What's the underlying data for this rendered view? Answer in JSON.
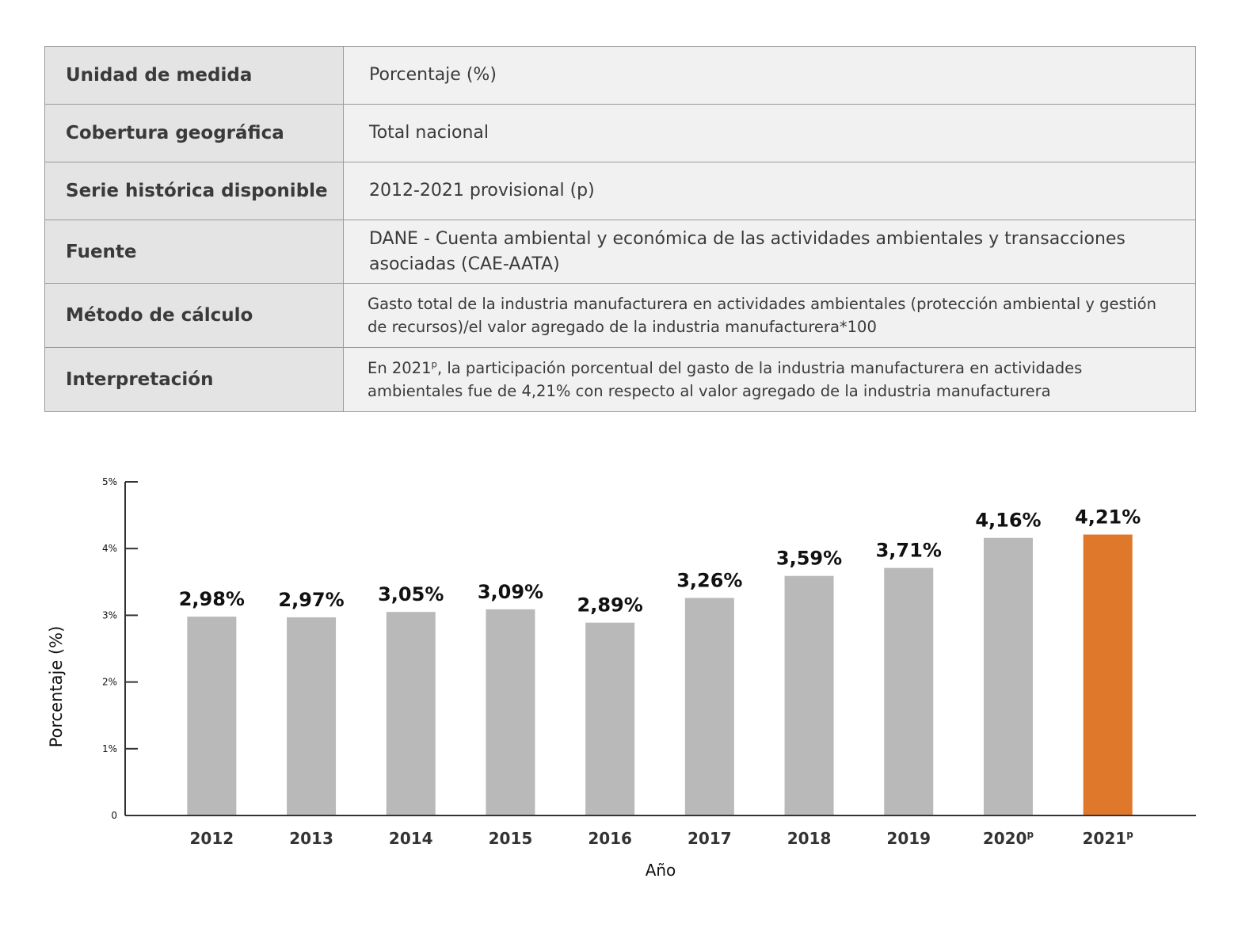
{
  "table": {
    "rows": [
      {
        "label": "Unidad de medida",
        "value": "Porcentaje (%)"
      },
      {
        "label": "Cobertura geográfica",
        "value": "Total nacional"
      },
      {
        "label": "Serie histórica disponible",
        "value": "2012-2021 provisional (p)"
      },
      {
        "label": "Fuente",
        "value": "DANE - Cuenta ambiental y económica de las actividades ambientales y transacciones asociadas (CAE-AATA)"
      },
      {
        "label": "Método de cálculo",
        "value": "Gasto total de la industria manufacturera en actividades ambientales (protección ambiental y gestión de recursos)/el valor agregado de la industria manufacturera*100"
      },
      {
        "label": "Interpretación",
        "value_prefix": "En 2021",
        "value_sup": "p",
        "value_suffix": ", la participación porcentual del gasto de la industria manufacturera en actividades ambientales fue de 4,21% con respecto al valor agregado de la industria manufacturera"
      }
    ]
  },
  "chart_data": {
    "type": "bar",
    "title": "",
    "xlabel": "Año",
    "ylabel": "Porcentaje (%)",
    "ylim": [
      0,
      5
    ],
    "yticks": [
      {
        "value": 0,
        "label": "0"
      },
      {
        "value": 1,
        "label": "1%"
      },
      {
        "value": 2,
        "label": "2%"
      },
      {
        "value": 3,
        "label": "3%"
      },
      {
        "value": 4,
        "label": "4%"
      },
      {
        "value": 5,
        "label": "5%"
      }
    ],
    "categories": [
      {
        "label": "2012",
        "sup": ""
      },
      {
        "label": "2013",
        "sup": ""
      },
      {
        "label": "2014",
        "sup": ""
      },
      {
        "label": "2015",
        "sup": ""
      },
      {
        "label": "2016",
        "sup": ""
      },
      {
        "label": "2017",
        "sup": ""
      },
      {
        "label": "2018",
        "sup": ""
      },
      {
        "label": "2019",
        "sup": ""
      },
      {
        "label": "2020",
        "sup": "p"
      },
      {
        "label": "2021",
        "sup": "p"
      }
    ],
    "values": [
      2.98,
      2.97,
      3.05,
      3.09,
      2.89,
      3.26,
      3.59,
      3.71,
      4.16,
      4.21
    ],
    "data_labels": [
      "2,98%",
      "2,97%",
      "3,05%",
      "3,09%",
      "2,89%",
      "3,26%",
      "3,59%",
      "3,71%",
      "4,16%",
      "4,21%"
    ],
    "colors": {
      "default": "#b9b9b9",
      "highlight": "#e0782c",
      "axis": "#333333"
    },
    "highlight_index": 9,
    "grid": false
  }
}
